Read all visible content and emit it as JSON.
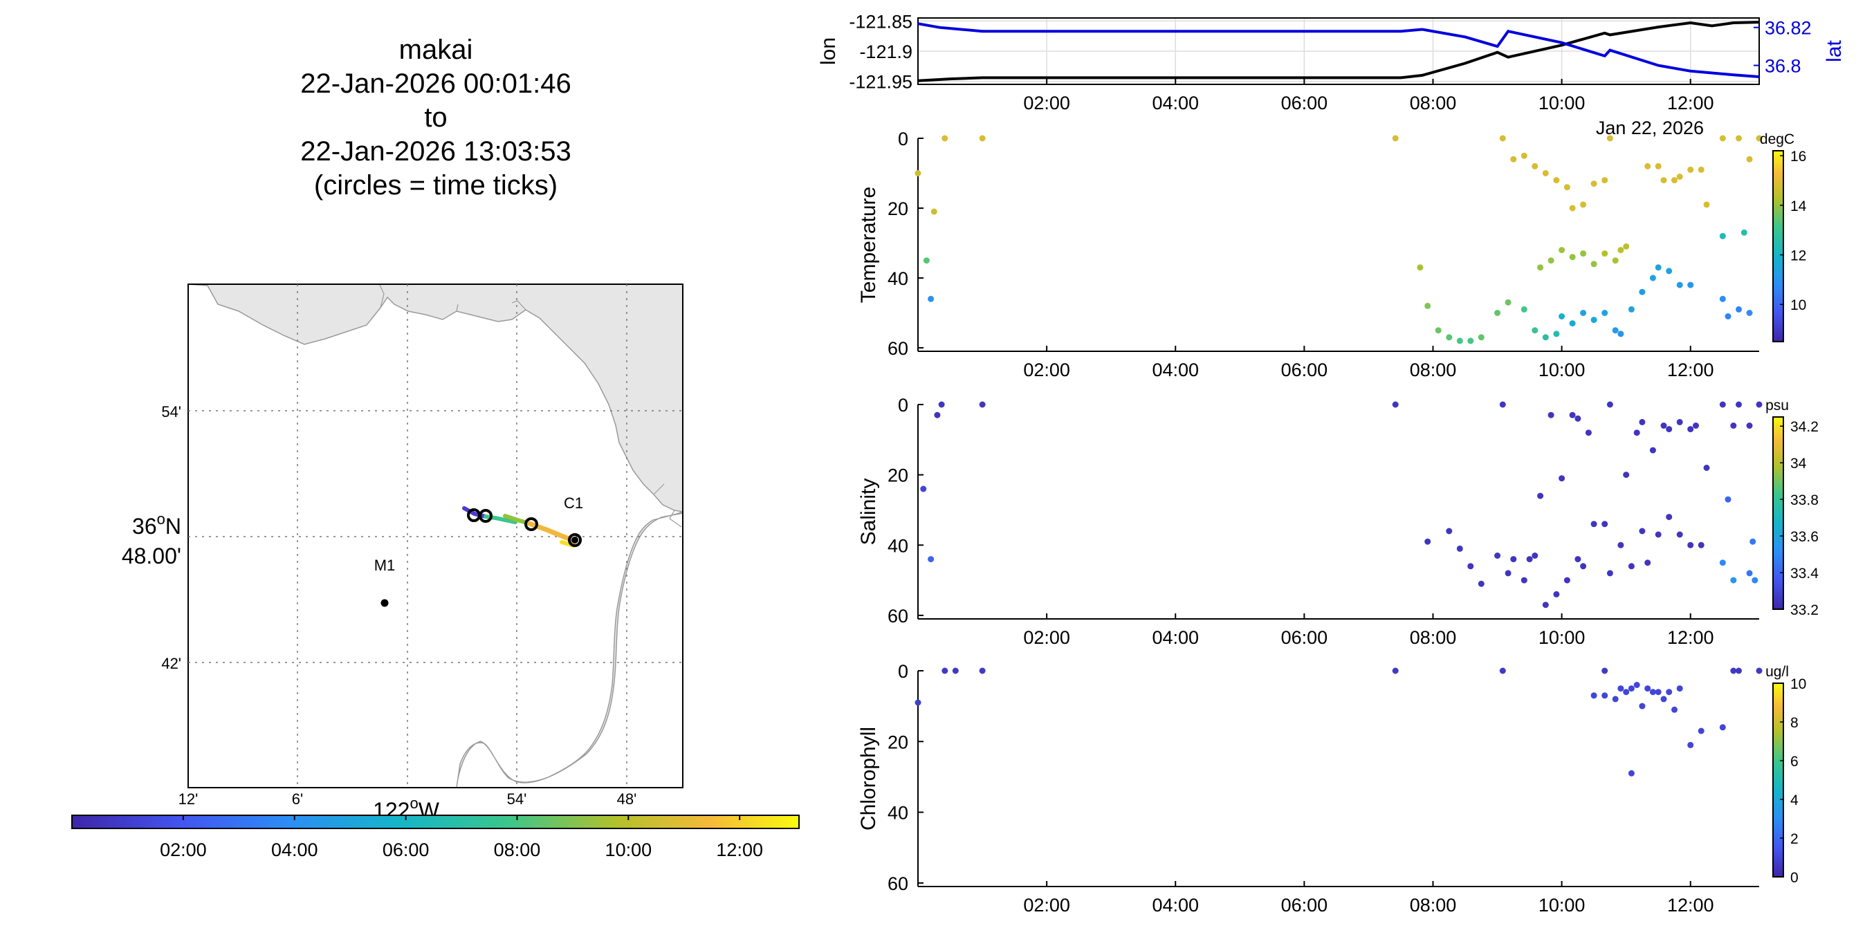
{
  "title": {
    "name": "makai",
    "start": "22-Jan-2026 00:01:46",
    "to": "to",
    "end": "22-Jan-2026 13:03:53",
    "note": "(circles = time ticks)"
  },
  "chart_data": [
    {
      "type": "line",
      "name": "position",
      "ylabel": "lon",
      "y2label": "lat",
      "date_label": "Jan 22, 2026",
      "x_ticks": [
        "02:00",
        "04:00",
        "06:00",
        "08:00",
        "10:00",
        "12:00"
      ],
      "xlim": [
        "00:00",
        "13:04"
      ],
      "ylim": [
        -121.955,
        -121.845
      ],
      "y_ticks": [
        "-121.85",
        "-121.9",
        "-121.95"
      ],
      "y2lim": [
        36.79,
        36.825
      ],
      "y2_ticks": [
        "36.82",
        "36.8"
      ],
      "grid": true,
      "series": [
        {
          "axis": "left",
          "color": "#000000",
          "x": [
            "00:00",
            "00:30",
            "01:00",
            "02:00",
            "04:00",
            "06:00",
            "07:30",
            "07:50",
            "08:30",
            "09:00",
            "09:10",
            "10:00",
            "10:40",
            "10:45",
            "11:30",
            "12:00",
            "12:20",
            "12:40",
            "13:04"
          ],
          "y": [
            -121.949,
            -121.946,
            -121.944,
            -121.944,
            -121.944,
            -121.944,
            -121.944,
            -121.94,
            -121.92,
            -121.902,
            -121.91,
            -121.89,
            -121.87,
            -121.873,
            -121.86,
            -121.853,
            -121.858,
            -121.853,
            -121.852
          ]
        },
        {
          "axis": "right",
          "color": "#0000dd",
          "x": [
            "00:00",
            "00:20",
            "01:00",
            "02:00",
            "04:00",
            "06:00",
            "07:30",
            "07:50",
            "08:30",
            "09:00",
            "09:10",
            "10:00",
            "10:40",
            "10:45",
            "11:30",
            "12:00",
            "12:40",
            "13:04"
          ],
          "y": [
            36.822,
            36.82,
            36.818,
            36.818,
            36.818,
            36.818,
            36.818,
            36.819,
            36.815,
            36.81,
            36.818,
            36.812,
            36.805,
            36.808,
            36.8,
            36.797,
            36.795,
            36.794
          ]
        }
      ]
    },
    {
      "type": "scatter",
      "name": "temperature",
      "ylabel": "Temperature",
      "date_label": "Jan 22, 2026",
      "x_ticks": [
        "02:00",
        "04:00",
        "06:00",
        "08:00",
        "10:00",
        "12:00"
      ],
      "ylim": [
        61,
        0
      ],
      "y_ticks": [
        "0",
        "20",
        "40",
        "60"
      ],
      "colorbar": {
        "unit": "degC",
        "range": [
          8.5,
          16.2
        ],
        "ticks": [
          "16",
          "14",
          "12",
          "10"
        ]
      },
      "points": [
        [
          "00:00",
          10,
          14.6
        ],
        [
          "00:08",
          35,
          13.4
        ],
        [
          "00:12",
          46,
          11.0
        ],
        [
          "00:15",
          21,
          14.6
        ],
        [
          "00:25",
          0,
          14.8
        ],
        [
          "01:00",
          0,
          14.8
        ],
        [
          "07:25",
          0,
          14.8
        ],
        [
          "07:48",
          37,
          14.2
        ],
        [
          "07:55",
          48,
          13.8
        ],
        [
          "08:05",
          55,
          13.6
        ],
        [
          "08:15",
          57,
          13.4
        ],
        [
          "08:25",
          58,
          13.2
        ],
        [
          "08:35",
          58,
          13.2
        ],
        [
          "08:45",
          57,
          13.5
        ],
        [
          "09:00",
          50,
          13.5
        ],
        [
          "09:10",
          47,
          13.6
        ],
        [
          "09:25",
          49,
          13.2
        ],
        [
          "09:35",
          55,
          13.0
        ],
        [
          "09:45",
          57,
          12.6
        ],
        [
          "09:55",
          56,
          12.4
        ],
        [
          "10:00",
          51,
          11.8
        ],
        [
          "10:10",
          53,
          11.6
        ],
        [
          "10:20",
          50,
          11.4
        ],
        [
          "10:30",
          52,
          11.6
        ],
        [
          "10:40",
          50,
          11.4
        ],
        [
          "10:50",
          55,
          11.2
        ],
        [
          "10:55",
          56,
          11.0
        ],
        [
          "11:05",
          49,
          11.4
        ],
        [
          "11:15",
          44,
          11.2
        ],
        [
          "11:25",
          40,
          11.4
        ],
        [
          "11:30",
          37,
          11.4
        ],
        [
          "11:40",
          38,
          11.4
        ],
        [
          "11:50",
          42,
          11.2
        ],
        [
          "12:00",
          42,
          11.0
        ],
        [
          "12:30",
          46,
          10.8
        ],
        [
          "12:35",
          51,
          10.6
        ],
        [
          "12:45",
          49,
          10.6
        ],
        [
          "12:55",
          50,
          10.8
        ],
        [
          "09:40",
          37,
          14.0
        ],
        [
          "09:50",
          35,
          14.0
        ],
        [
          "10:00",
          32,
          14.1
        ],
        [
          "10:10",
          34,
          14.0
        ],
        [
          "10:20",
          33,
          14.0
        ],
        [
          "10:30",
          36,
          14.0
        ],
        [
          "10:40",
          33,
          14.3
        ],
        [
          "10:50",
          35,
          14.2
        ],
        [
          "10:55",
          32,
          14.4
        ],
        [
          "11:00",
          31,
          14.4
        ],
        [
          "09:05",
          0,
          14.8
        ],
        [
          "09:15",
          6,
          14.8
        ],
        [
          "09:25",
          5,
          14.8
        ],
        [
          "09:35",
          8,
          14.8
        ],
        [
          "09:45",
          10,
          14.8
        ],
        [
          "09:55",
          12,
          14.8
        ],
        [
          "10:05",
          14,
          14.8
        ],
        [
          "10:10",
          20,
          14.8
        ],
        [
          "10:20",
          19,
          14.8
        ],
        [
          "10:30",
          13,
          14.8
        ],
        [
          "10:40",
          12,
          14.8
        ],
        [
          "10:45",
          0,
          14.8
        ],
        [
          "11:20",
          8,
          14.8
        ],
        [
          "11:30",
          8,
          14.8
        ],
        [
          "11:35",
          12,
          14.8
        ],
        [
          "11:45",
          12,
          14.8
        ],
        [
          "11:50",
          11,
          14.8
        ],
        [
          "12:00",
          9,
          14.8
        ],
        [
          "12:10",
          9,
          14.8
        ],
        [
          "12:15",
          19,
          14.8
        ],
        [
          "12:30",
          0,
          14.8
        ],
        [
          "12:45",
          0,
          14.8
        ],
        [
          "12:55",
          6,
          14.8
        ],
        [
          "13:04",
          0,
          14.8
        ],
        [
          "12:30",
          28,
          12.3
        ],
        [
          "12:50",
          27,
          12.5
        ]
      ]
    },
    {
      "type": "scatter",
      "name": "salinity",
      "ylabel": "Salinity",
      "date_label": "Jan 22, 2026",
      "x_ticks": [
        "02:00",
        "04:00",
        "06:00",
        "08:00",
        "10:00",
        "12:00"
      ],
      "ylim": [
        61,
        0
      ],
      "y_ticks": [
        "0",
        "20",
        "40",
        "60"
      ],
      "colorbar": {
        "unit": "psu",
        "range": [
          33.2,
          34.25
        ],
        "ticks": [
          "34.2",
          "34",
          "33.8",
          "33.6",
          "33.4",
          "33.2"
        ]
      },
      "points": [
        [
          "00:05",
          24,
          33.3
        ],
        [
          "00:12",
          44,
          33.4
        ],
        [
          "00:18",
          3,
          33.25
        ],
        [
          "00:22",
          0,
          33.25
        ],
        [
          "01:00",
          0,
          33.25
        ],
        [
          "07:25",
          0,
          33.25
        ],
        [
          "07:55",
          39,
          33.25
        ],
        [
          "08:15",
          36,
          33.25
        ],
        [
          "08:25",
          41,
          33.25
        ],
        [
          "08:35",
          46,
          33.25
        ],
        [
          "08:45",
          51,
          33.25
        ],
        [
          "09:00",
          43,
          33.25
        ],
        [
          "09:10",
          48,
          33.25
        ],
        [
          "09:15",
          44,
          33.25
        ],
        [
          "09:25",
          50,
          33.25
        ],
        [
          "09:30",
          44,
          33.25
        ],
        [
          "09:35",
          43,
          33.25
        ],
        [
          "09:45",
          57,
          33.25
        ],
        [
          "09:55",
          54,
          33.25
        ],
        [
          "10:00",
          21,
          33.25
        ],
        [
          "10:05",
          50,
          33.25
        ],
        [
          "10:15",
          44,
          33.25
        ],
        [
          "10:20",
          46,
          33.25
        ],
        [
          "10:30",
          34,
          33.25
        ],
        [
          "10:40",
          34,
          33.25
        ],
        [
          "10:45",
          48,
          33.25
        ],
        [
          "10:55",
          40,
          33.25
        ],
        [
          "11:05",
          46,
          33.25
        ],
        [
          "11:15",
          36,
          33.25
        ],
        [
          "11:20",
          45,
          33.25
        ],
        [
          "11:30",
          37,
          33.25
        ],
        [
          "11:40",
          32,
          33.25
        ],
        [
          "11:50",
          37,
          33.25
        ],
        [
          "12:00",
          40,
          33.25
        ],
        [
          "12:10",
          40,
          33.25
        ],
        [
          "09:05",
          0,
          33.25
        ],
        [
          "09:40",
          26,
          33.25
        ],
        [
          "09:50",
          3,
          33.25
        ],
        [
          "10:10",
          3,
          33.25
        ],
        [
          "10:15",
          4,
          33.25
        ],
        [
          "10:25",
          8,
          33.25
        ],
        [
          "10:45",
          0,
          33.25
        ],
        [
          "11:00",
          20,
          33.25
        ],
        [
          "11:10",
          8,
          33.25
        ],
        [
          "11:15",
          5,
          33.25
        ],
        [
          "11:25",
          13,
          33.25
        ],
        [
          "11:35",
          6,
          33.25
        ],
        [
          "11:40",
          7,
          33.25
        ],
        [
          "11:50",
          5,
          33.25
        ],
        [
          "12:00",
          7,
          33.25
        ],
        [
          "12:05",
          6,
          33.25
        ],
        [
          "12:15",
          18,
          33.25
        ],
        [
          "12:30",
          0,
          33.25
        ],
        [
          "12:40",
          6,
          33.25
        ],
        [
          "12:45",
          0,
          33.25
        ],
        [
          "12:55",
          6,
          33.25
        ],
        [
          "13:04",
          0,
          33.25
        ],
        [
          "12:30",
          45,
          33.5
        ],
        [
          "12:35",
          27,
          33.4
        ],
        [
          "12:40",
          50,
          33.55
        ],
        [
          "12:55",
          48,
          33.45
        ],
        [
          "13:00",
          50,
          33.5
        ],
        [
          "12:58",
          39,
          33.45
        ]
      ]
    },
    {
      "type": "scatter",
      "name": "chlorophyll",
      "ylabel": "Chlorophyll",
      "date_label": "Jan 22, 2026",
      "x_ticks": [
        "02:00",
        "04:00",
        "06:00",
        "08:00",
        "10:00",
        "12:00"
      ],
      "ylim": [
        61,
        0
      ],
      "y_ticks": [
        "0",
        "20",
        "40",
        "60"
      ],
      "colorbar": {
        "unit": "ug/l",
        "range": [
          0,
          10
        ],
        "ticks": [
          "10",
          "8",
          "6",
          "4",
          "2",
          "0"
        ]
      },
      "points": [
        [
          "00:00",
          9,
          0.8
        ],
        [
          "00:25",
          0,
          0.6
        ],
        [
          "00:35",
          0,
          0.6
        ],
        [
          "01:00",
          0,
          0.6
        ],
        [
          "07:25",
          0,
          0.6
        ],
        [
          "09:05",
          0,
          0.6
        ],
        [
          "10:40",
          0,
          0.6
        ],
        [
          "10:30",
          7,
          1.0
        ],
        [
          "10:40",
          7,
          1.0
        ],
        [
          "10:50",
          8,
          1.0
        ],
        [
          "10:55",
          5,
          1.0
        ],
        [
          "11:00",
          6,
          1.0
        ],
        [
          "11:05",
          5,
          1.0
        ],
        [
          "11:10",
          4,
          1.0
        ],
        [
          "11:15",
          10,
          1.0
        ],
        [
          "11:20",
          5,
          1.0
        ],
        [
          "11:25",
          6,
          1.0
        ],
        [
          "11:30",
          6,
          1.0
        ],
        [
          "11:35",
          8,
          1.0
        ],
        [
          "11:40",
          6,
          1.0
        ],
        [
          "11:45",
          11,
          1.0
        ],
        [
          "11:50",
          5,
          1.0
        ],
        [
          "12:00",
          21,
          1.0
        ],
        [
          "12:10",
          17,
          1.0
        ],
        [
          "12:30",
          16,
          1.0
        ],
        [
          "11:05",
          29,
          1.0
        ],
        [
          "12:40",
          0,
          0.6
        ],
        [
          "12:45",
          0,
          0.6
        ],
        [
          "13:04",
          0,
          0.6
        ]
      ]
    },
    {
      "type": "map",
      "name": "track-map",
      "lat_ticks": [
        "54'",
        "36°N 48.00'",
        "42'"
      ],
      "lon_ticks": [
        "12'",
        "6'",
        "54'",
        "48'"
      ],
      "lon_label": "122°W",
      "stations": [
        "C1",
        "M1"
      ],
      "colorbar": {
        "ticks": [
          "02:00",
          "04:00",
          "06:00",
          "08:00",
          "10:00",
          "12:00"
        ]
      }
    }
  ],
  "colors": {
    "land": "#e6e6e6",
    "coast": "#9a9a9a",
    "lon_line": "#000000",
    "lat_line": "#0000dd"
  }
}
